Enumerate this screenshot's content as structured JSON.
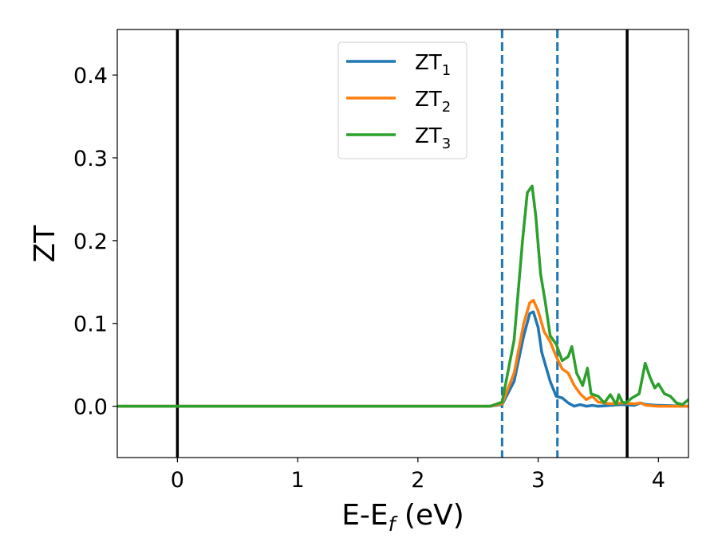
{
  "chart_data": {
    "type": "line",
    "title": "",
    "xlabel": "E-E",
    "xlabel_sub": "f",
    "xlabel_unit": " (eV)",
    "ylabel": "ZT",
    "xlim": [
      -0.5,
      4.25
    ],
    "ylim": [
      -0.062,
      0.455
    ],
    "xticks": [
      0,
      1,
      2,
      3,
      4
    ],
    "xtick_labels": [
      "0",
      "1",
      "2",
      "3",
      "4"
    ],
    "yticks": [
      0.0,
      0.1,
      0.2,
      0.3,
      0.4
    ],
    "ytick_labels": [
      "0.0",
      "0.1",
      "0.2",
      "0.3",
      "0.4"
    ],
    "grid": false,
    "legend_position": "top-center",
    "vertical_lines": [
      {
        "x": 0.0,
        "style": "solid",
        "color": "#000000"
      },
      {
        "x": 3.74,
        "style": "solid",
        "color": "#000000"
      },
      {
        "x": 2.7,
        "style": "dashed",
        "color": "#1f77b4"
      },
      {
        "x": 3.16,
        "style": "dashed",
        "color": "#1f77b4"
      }
    ],
    "series": [
      {
        "name": "ZT",
        "name_sub": "1",
        "color": "#1f77b4",
        "x": [
          -0.5,
          2.6,
          2.7,
          2.8,
          2.88,
          2.93,
          2.96,
          3.0,
          3.03,
          3.06,
          3.1,
          3.15,
          3.2,
          3.25,
          3.3,
          3.35,
          3.4,
          3.45,
          3.5,
          3.6,
          3.7,
          3.8,
          3.85,
          3.9,
          4.0,
          4.25
        ],
        "y": [
          0.0,
          0.0,
          0.002,
          0.03,
          0.085,
          0.112,
          0.114,
          0.095,
          0.065,
          0.05,
          0.03,
          0.012,
          0.01,
          0.004,
          0.0,
          0.002,
          0.0,
          0.001,
          0.0,
          0.001,
          0.002,
          0.001,
          0.004,
          0.002,
          0.001,
          0.0
        ]
      },
      {
        "name": "ZT",
        "name_sub": "2",
        "color": "#ff7f0e",
        "x": [
          -0.5,
          2.6,
          2.7,
          2.8,
          2.88,
          2.93,
          2.96,
          3.0,
          3.05,
          3.1,
          3.15,
          3.2,
          3.25,
          3.3,
          3.35,
          3.4,
          3.45,
          3.5,
          3.6,
          3.7,
          3.8,
          3.85,
          3.9,
          4.0,
          4.25
        ],
        "y": [
          0.0,
          0.0,
          0.003,
          0.04,
          0.1,
          0.125,
          0.128,
          0.115,
          0.09,
          0.078,
          0.06,
          0.045,
          0.04,
          0.025,
          0.015,
          0.008,
          0.012,
          0.005,
          0.003,
          0.004,
          0.003,
          0.004,
          0.001,
          0.0,
          0.0
        ]
      },
      {
        "name": "ZT",
        "name_sub": "3",
        "color": "#2ca02c",
        "x": [
          -0.5,
          2.6,
          2.7,
          2.8,
          2.87,
          2.91,
          2.95,
          2.98,
          3.02,
          3.06,
          3.1,
          3.15,
          3.2,
          3.25,
          3.28,
          3.32,
          3.37,
          3.41,
          3.44,
          3.5,
          3.55,
          3.6,
          3.65,
          3.67,
          3.7,
          3.73,
          3.78,
          3.84,
          3.89,
          3.93,
          3.97,
          4.0,
          4.05,
          4.1,
          4.15,
          4.2,
          4.25
        ],
        "y": [
          0.0,
          0.0,
          0.005,
          0.08,
          0.2,
          0.258,
          0.266,
          0.23,
          0.16,
          0.125,
          0.085,
          0.075,
          0.055,
          0.06,
          0.072,
          0.04,
          0.025,
          0.046,
          0.015,
          0.012,
          0.004,
          0.014,
          0.002,
          0.014,
          0.005,
          0.004,
          0.01,
          0.015,
          0.052,
          0.035,
          0.022,
          0.027,
          0.015,
          0.012,
          0.004,
          0.002,
          0.008
        ]
      }
    ]
  }
}
